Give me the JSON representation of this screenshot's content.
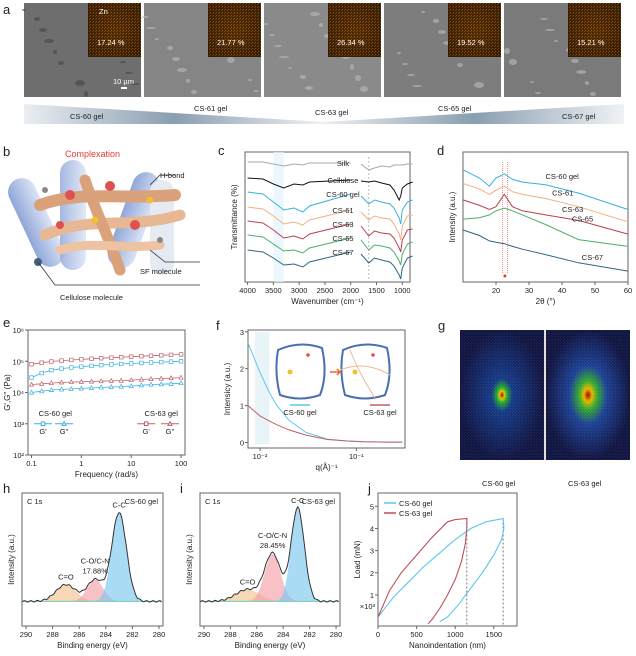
{
  "panel_labels": {
    "a": "a",
    "b": "b",
    "c": "c",
    "d": "d",
    "e": "e",
    "f": "f",
    "g": "g",
    "h": "h",
    "i": "i",
    "j": "j"
  },
  "sem": {
    "element": "Zn",
    "scale_bar": "10 µm",
    "samples": [
      {
        "label": "CS-60 gel",
        "zn": "17.24 %"
      },
      {
        "label": "CS-61 gel",
        "zn": "21.77 %"
      },
      {
        "label": "CS-63 gel",
        "zn": "26.34 %"
      },
      {
        "label": "CS-65 gel",
        "zn": "19.52 %"
      },
      {
        "label": "CS-67 gel",
        "zn": "15.21 %"
      }
    ]
  },
  "illustration": {
    "title": "Complexation",
    "hbond": "H-bond",
    "sf": "SF molecule",
    "cellulose": "Cellulose molecule",
    "title_color": "#e53935"
  },
  "saxs_images": {
    "left": "CS-60 gel",
    "right": "CS-63 gel"
  },
  "colors": {
    "silk": "#aaaaaa",
    "cellulose": "#111111",
    "cs60": "#3ab0e0",
    "cs61": "#f2b07e",
    "cs63": "#b8404e",
    "cs65": "#4caf6a",
    "cs67": "#2f6684"
  },
  "chart_data": [
    {
      "id": "c",
      "type": "line",
      "xlabel": "Wavenumber (cm⁻¹)",
      "ylabel": "Transmittance (%)",
      "xlim": [
        4050,
        850
      ],
      "ylim": [
        0,
        6.5
      ],
      "xticks": [
        4000,
        3500,
        3000,
        2500,
        2000,
        1500,
        1000
      ],
      "x": [
        4000,
        3700,
        3500,
        3300,
        3100,
        2930,
        2800,
        2000,
        1800,
        1650,
        1540,
        1400,
        1240,
        1160,
        1060,
        1030,
        1000,
        900,
        800
      ],
      "series": [
        {
          "name": "Silk",
          "color": "#aaaaaa",
          "values": [
            6.0,
            6.0,
            5.9,
            5.8,
            5.9,
            5.85,
            5.95,
            5.95,
            5.9,
            5.6,
            5.7,
            5.8,
            5.75,
            5.85,
            5.85,
            5.85,
            5.85,
            5.9,
            5.9
          ]
        },
        {
          "name": "Cellulose",
          "color": "#111111",
          "values": [
            5.2,
            5.15,
            4.9,
            4.7,
            4.9,
            4.85,
            5.0,
            5.1,
            5.05,
            5.0,
            5.05,
            4.95,
            4.85,
            4.6,
            4.1,
            4.3,
            4.7,
            4.9,
            5.0
          ]
        },
        {
          "name": "CS-60 gel",
          "color": "#3ab0e0",
          "values": [
            4.5,
            4.4,
            4.0,
            3.6,
            3.7,
            3.5,
            3.8,
            4.4,
            4.3,
            3.9,
            4.1,
            4.0,
            3.9,
            3.7,
            3.2,
            2.9,
            3.6,
            4.0,
            4.1
          ]
        },
        {
          "name": "CS-61",
          "color": "#f2b07e",
          "values": [
            3.75,
            3.65,
            3.3,
            2.9,
            3.0,
            2.85,
            3.1,
            3.6,
            3.5,
            3.1,
            3.3,
            3.2,
            3.15,
            2.9,
            2.4,
            2.1,
            2.8,
            3.3,
            3.35
          ]
        },
        {
          "name": "CS-63",
          "color": "#b8404e",
          "values": [
            3.05,
            2.95,
            2.6,
            2.2,
            2.3,
            2.15,
            2.4,
            2.9,
            2.8,
            2.3,
            2.55,
            2.45,
            2.4,
            2.2,
            1.7,
            1.5,
            2.1,
            2.6,
            2.65
          ]
        },
        {
          "name": "CS-65",
          "color": "#4caf6a",
          "values": [
            2.35,
            2.25,
            1.9,
            1.55,
            1.6,
            1.45,
            1.7,
            2.2,
            2.1,
            1.6,
            1.85,
            1.8,
            1.7,
            1.5,
            1.05,
            0.85,
            1.4,
            1.9,
            2.0
          ]
        },
        {
          "name": "CS-67",
          "color": "#2f6684",
          "values": [
            1.6,
            1.5,
            1.2,
            0.85,
            0.9,
            0.75,
            1.0,
            1.5,
            1.4,
            0.95,
            1.2,
            1.1,
            1.0,
            0.8,
            0.35,
            0.15,
            0.7,
            1.2,
            1.3
          ]
        }
      ]
    },
    {
      "id": "d",
      "type": "line",
      "xlabel": "2θ (°)",
      "ylabel": "Intensity (a.u.)",
      "xlim": [
        10,
        60
      ],
      "ylim": [
        0,
        9.5
      ],
      "xticks": [
        20,
        30,
        40,
        50,
        60
      ],
      "x": [
        10,
        15,
        18,
        20,
        22.5,
        25,
        28,
        35,
        45,
        60
      ],
      "series": [
        {
          "name": "CS-60 gel",
          "color": "#3ab0e0",
          "values": [
            8.2,
            7.6,
            7.0,
            7.6,
            7.9,
            7.5,
            7.3,
            7.1,
            6.5,
            5.3
          ]
        },
        {
          "name": "CS-61",
          "color": "#f2b07e",
          "values": [
            7.2,
            6.8,
            6.4,
            6.7,
            7.0,
            6.6,
            6.4,
            6.1,
            5.5,
            4.4
          ]
        },
        {
          "name": "CS-63",
          "color": "#b8404e",
          "values": [
            6.0,
            5.6,
            5.3,
            5.5,
            6.4,
            5.5,
            5.2,
            4.9,
            4.5,
            3.5
          ]
        },
        {
          "name": "CS-65",
          "color": "#4caf6a",
          "values": [
            4.6,
            4.7,
            4.9,
            5.2,
            5.4,
            5.2,
            4.9,
            4.2,
            3.1,
            2.6
          ]
        },
        {
          "name": "CS-67",
          "color": "#2f6684",
          "values": [
            3.8,
            3.4,
            3.0,
            2.9,
            2.8,
            2.6,
            2.4,
            2.0,
            1.4,
            0.8
          ]
        }
      ]
    },
    {
      "id": "e",
      "type": "line",
      "xlabel": "Frequency (rad/s)",
      "ylabel": "G',G'' (Pa)",
      "xscale": "log",
      "yscale": "log",
      "xlim": [
        0.085,
        120
      ],
      "ylim": [
        100,
        1000000
      ],
      "xticks": [
        0.1,
        1,
        10,
        100
      ],
      "xtick_labels": [
        "0.1",
        "1",
        "10",
        "100"
      ],
      "yticks": [
        100,
        1000,
        10000,
        100000,
        1000000
      ],
      "ytick_labels": [
        "10²",
        "10³",
        "10⁴",
        "10⁵",
        "10⁶"
      ],
      "x": [
        0.1,
        0.16,
        0.25,
        0.4,
        0.63,
        1,
        1.6,
        2.5,
        4,
        6.3,
        10,
        16,
        25,
        40,
        63,
        100
      ],
      "legend": {
        "left_title": "CS-60 gel",
        "right_title": "CS-63 gel",
        "g1": "G'",
        "g2": "G''"
      },
      "series": [
        {
          "name": "CS-63 gel G'",
          "color": "#c0606a",
          "marker": "square",
          "values": [
            80000,
            90000,
            98000,
            105000,
            110000,
            115000,
            120000,
            125000,
            130000,
            135000,
            140000,
            145000,
            150000,
            155000,
            160000,
            165000
          ]
        },
        {
          "name": "CS-60 gel G'",
          "color": "#3ab0e0",
          "marker": "square",
          "values": [
            30000,
            42000,
            52000,
            58000,
            63000,
            67000,
            71000,
            75000,
            79000,
            82000,
            85000,
            88000,
            91000,
            94000,
            97000,
            100000
          ]
        },
        {
          "name": "CS-63 gel G''",
          "color": "#c0606a",
          "marker": "triangle",
          "values": [
            18000,
            19000,
            20000,
            21000,
            21500,
            22000,
            22500,
            23000,
            23500,
            24000,
            25000,
            26000,
            27000,
            28000,
            29000,
            30000
          ]
        },
        {
          "name": "CS-60 gel G''",
          "color": "#3ab0e0",
          "marker": "triangle",
          "values": [
            10000,
            11000,
            12000,
            12500,
            13000,
            13500,
            14000,
            14500,
            15000,
            15500,
            16000,
            17000,
            18000,
            18500,
            19000,
            20000
          ]
        }
      ]
    },
    {
      "id": "f",
      "type": "line",
      "xlabel": "q(Å)⁻¹",
      "ylabel": "Intensicy (a.u.)",
      "xscale": "log",
      "xlim": [
        0.0075,
        0.32
      ],
      "ylim": [
        -0.15,
        3.05
      ],
      "xticks": [
        0.01,
        0.1
      ],
      "xtick_labels": [
        "10⁻²",
        "10⁻¹"
      ],
      "yticks": [
        0,
        1,
        2,
        3
      ],
      "x": [
        0.0075,
        0.01,
        0.0125,
        0.015,
        0.02,
        0.03,
        0.05,
        0.08,
        0.12,
        0.2,
        0.3
      ],
      "series": [
        {
          "name": "CS-60 gel",
          "color": "#5cc6ea",
          "values": [
            2.7,
            1.9,
            1.35,
            1.0,
            0.6,
            0.27,
            0.09,
            0.04,
            0.02,
            0.01,
            0.01
          ]
        },
        {
          "name": "CS-63 gel",
          "color": "#c0606a",
          "values": [
            1.0,
            0.72,
            0.58,
            0.48,
            0.34,
            0.2,
            0.08,
            0.04,
            0.02,
            0.01,
            0.01
          ]
        }
      ]
    },
    {
      "id": "h",
      "type": "area",
      "xlabel": "Binding energy (eV)",
      "ylabel": "Intensity (a.u.)",
      "title": "C 1s",
      "sample": "CS-60 gel",
      "xlim": [
        290.3,
        279.7
      ],
      "ylim": [
        -0.2,
        1.15
      ],
      "xticks": [
        290,
        288,
        286,
        284,
        282,
        280
      ],
      "baseline": 0.05,
      "components": [
        {
          "name": "C=O",
          "center": 287.0,
          "height": 0.17,
          "width": 0.75,
          "color": "#f4c28f"
        },
        {
          "name": "C-O/C-N",
          "percent": "17.88%",
          "center": 284.8,
          "height": 0.22,
          "width": 0.6,
          "color": "#f2a0a6"
        },
        {
          "name": "C-C",
          "center": 283.0,
          "height": 0.9,
          "width": 0.55,
          "color": "#7cc7ef"
        }
      ]
    },
    {
      "id": "i",
      "type": "area",
      "xlabel": "Binding energy (eV)",
      "ylabel": "Intensity (a.u.)",
      "title": "C 1s",
      "sample": "CS-63 gel",
      "xlim": [
        290.3,
        279.7
      ],
      "ylim": [
        -0.2,
        1.15
      ],
      "xticks": [
        290,
        288,
        286,
        284,
        282,
        280
      ],
      "baseline": 0.05,
      "components": [
        {
          "name": "C=O",
          "center": 286.7,
          "height": 0.12,
          "width": 0.9,
          "color": "#f4c28f"
        },
        {
          "name": "C-O/C-N",
          "percent": "28.45%",
          "center": 284.8,
          "height": 0.48,
          "width": 0.6,
          "color": "#f2a0a6"
        },
        {
          "name": "C-C",
          "center": 282.9,
          "height": 0.95,
          "width": 0.5,
          "color": "#7cc7ef"
        }
      ]
    },
    {
      "id": "j",
      "type": "line",
      "xlabel": "Nanoindentation (nm)",
      "ylabel": "Load (mN)",
      "y_multiplier": "×10³",
      "xlim": [
        0,
        1800
      ],
      "ylim": [
        -0.4,
        5.6
      ],
      "xticks": [
        0,
        500,
        1000,
        1500
      ],
      "yticks": [
        1,
        2,
        3,
        4,
        5
      ],
      "series": [
        {
          "name": "CS-60 gel",
          "color": "#5cc6ea",
          "x": [
            0,
            200,
            400,
            600,
            800,
            1000,
            1200,
            1400,
            1550,
            1620,
            1630,
            1600,
            1500,
            1350,
            1200,
            1050,
            900,
            800
          ],
          "y": [
            0,
            0.9,
            1.6,
            2.3,
            2.9,
            3.5,
            4.0,
            4.3,
            4.4,
            4.45,
            4.0,
            3.5,
            2.8,
            2.0,
            1.3,
            0.6,
            0.0,
            -0.2
          ]
        },
        {
          "name": "CS-63 gel",
          "color": "#c0505c",
          "x": [
            0,
            150,
            300,
            500,
            700,
            900,
            1000,
            1150,
            1150,
            1130,
            1080,
            1000,
            900,
            800,
            700,
            650
          ],
          "y": [
            0,
            1.2,
            2.0,
            2.8,
            3.6,
            4.3,
            4.4,
            4.45,
            4.0,
            3.3,
            2.5,
            1.7,
            1.0,
            0.4,
            -0.1,
            -0.3
          ]
        }
      ],
      "max_depth": [
        1620,
        1150
      ]
    }
  ]
}
